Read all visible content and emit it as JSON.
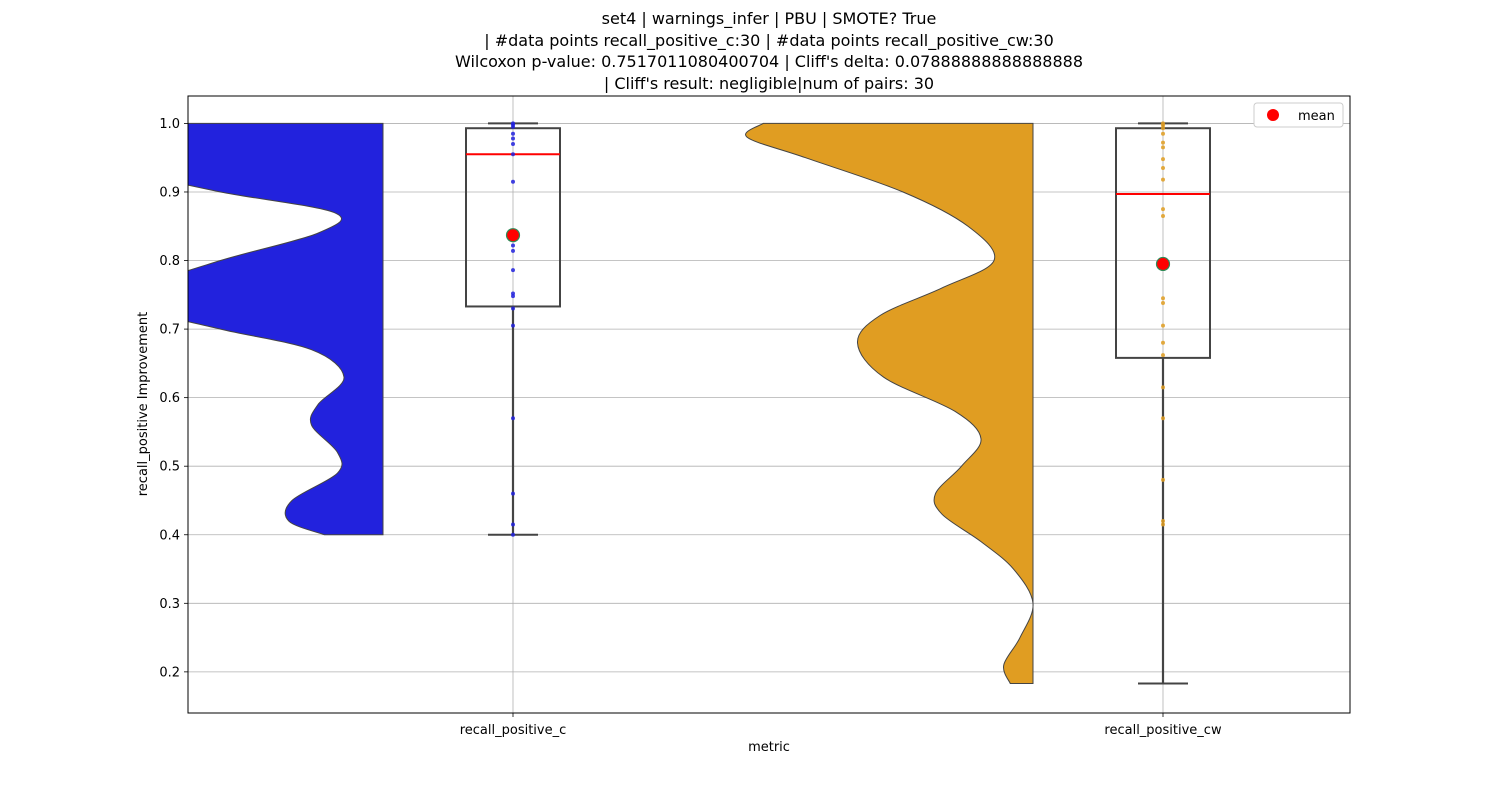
{
  "chart_data": {
    "type": "violin-box",
    "title_lines": [
      "set4 | warnings_infer | PBU | SMOTE? True",
      "| #data points recall_positive_c:30 | #data points recall_positive_cw:30",
      "Wilcoxon p-value: 0.7517011080400704 | Cliff's delta: 0.07888888888888888",
      "| Cliff's result: negligible|num of pairs: 30"
    ],
    "xlabel": "metric",
    "ylabel": "recall_positive Improvement",
    "categories": [
      "recall_positive_c",
      "recall_positive_cw"
    ],
    "ylim": [
      0.14,
      1.04
    ],
    "yticks": [
      0.2,
      0.3,
      0.4,
      0.5,
      0.6,
      0.7,
      0.8,
      0.9,
      1.0
    ],
    "ytick_labels": [
      "0.2",
      "0.3",
      "0.4",
      "0.5",
      "0.6",
      "0.7",
      "0.8",
      "0.9",
      "1.0"
    ],
    "grid": true,
    "legend": {
      "placement": "top-right",
      "entries": [
        {
          "label": "mean",
          "color": "#ff0000"
        }
      ]
    },
    "series": [
      {
        "category": "recall_positive_c",
        "color": "#2222dd",
        "box": {
          "min": 0.4,
          "q1": 0.733,
          "median": 0.955,
          "q3": 0.993,
          "max": 1.0
        },
        "mean": 0.837,
        "points": [
          1.0,
          0.998,
          0.995,
          0.985,
          0.978,
          0.97,
          0.955,
          0.915,
          0.835,
          0.822,
          0.814,
          0.786,
          0.752,
          0.748,
          0.73,
          0.705,
          0.57,
          0.46,
          0.415,
          0.4
        ],
        "violin_side": "left",
        "violin_profile": [
          [
            1.0,
            1.0
          ],
          [
            0.96,
            1.0
          ],
          [
            0.93,
            0.78
          ],
          [
            0.9,
            0.5
          ],
          [
            0.87,
            0.15
          ],
          [
            0.84,
            0.2
          ],
          [
            0.8,
            0.5
          ],
          [
            0.76,
            0.74
          ],
          [
            0.73,
            0.74
          ],
          [
            0.7,
            0.5
          ],
          [
            0.67,
            0.22
          ],
          [
            0.63,
            0.12
          ],
          [
            0.59,
            0.2
          ],
          [
            0.56,
            0.22
          ],
          [
            0.52,
            0.14
          ],
          [
            0.49,
            0.14
          ],
          [
            0.45,
            0.28
          ],
          [
            0.42,
            0.29
          ],
          [
            0.4,
            0.18
          ]
        ]
      },
      {
        "category": "recall_positive_cw",
        "color": "#e09d22",
        "box": {
          "min": 0.183,
          "q1": 0.658,
          "median": 0.897,
          "q3": 0.993,
          "max": 1.0
        },
        "mean": 0.795,
        "points": [
          1.0,
          0.997,
          0.993,
          0.985,
          0.972,
          0.965,
          0.948,
          0.935,
          0.918,
          0.875,
          0.865,
          0.745,
          0.738,
          0.705,
          0.68,
          0.662,
          0.615,
          0.57,
          0.48,
          0.42,
          0.415
        ],
        "violin_side": "left",
        "violin_profile": [
          [
            1.0,
            0.83
          ],
          [
            0.98,
            0.88
          ],
          [
            0.95,
            0.7
          ],
          [
            0.9,
            0.4
          ],
          [
            0.85,
            0.2
          ],
          [
            0.8,
            0.12
          ],
          [
            0.76,
            0.28
          ],
          [
            0.72,
            0.47
          ],
          [
            0.68,
            0.54
          ],
          [
            0.63,
            0.46
          ],
          [
            0.58,
            0.24
          ],
          [
            0.54,
            0.16
          ],
          [
            0.5,
            0.22
          ],
          [
            0.46,
            0.3
          ],
          [
            0.43,
            0.28
          ],
          [
            0.39,
            0.16
          ],
          [
            0.35,
            0.06
          ],
          [
            0.3,
            0.0
          ],
          [
            0.25,
            0.04
          ],
          [
            0.21,
            0.09
          ],
          [
            0.183,
            0.07
          ]
        ]
      }
    ]
  }
}
